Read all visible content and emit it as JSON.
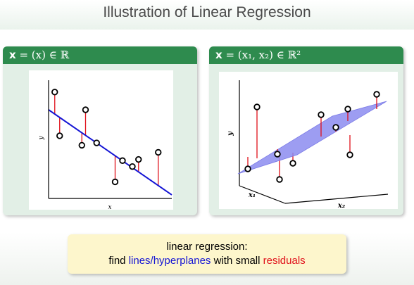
{
  "title": "Illustration of Linear Regression",
  "left_panel": {
    "heading_bold": "x",
    "heading_rest": " = (x) ∈ ℝ",
    "x_axis_label": "x",
    "y_axis_label": "y"
  },
  "right_panel": {
    "heading_bold": "x",
    "heading_rest": " = (x₁, x₂) ∈ ℝ²",
    "x1_label": "x₁",
    "x2_label": "x₂",
    "y_axis_label": "y"
  },
  "note": {
    "line1": "linear regression:",
    "line2_pre": "find ",
    "line2_blue": "lines/hyperplanes",
    "line2_mid": " with small ",
    "line2_red": "residuals"
  },
  "colors": {
    "line": "#1414d4",
    "residual": "#e0101a",
    "plane": "#8888ee",
    "block_header": "#2e8b4e"
  },
  "chart_data": [
    {
      "type": "scatter",
      "title": "",
      "xlabel": "x",
      "ylabel": "y",
      "xlim": [
        0,
        10
      ],
      "ylim": [
        0,
        10
      ],
      "grid": false,
      "points": [
        {
          "x": 0.5,
          "y": 9.0
        },
        {
          "x": 0.9,
          "y": 5.3
        },
        {
          "x": 2.7,
          "y": 4.5
        },
        {
          "x": 3.0,
          "y": 7.5
        },
        {
          "x": 3.9,
          "y": 4.7
        },
        {
          "x": 5.4,
          "y": 1.4
        },
        {
          "x": 6.0,
          "y": 3.2
        },
        {
          "x": 6.8,
          "y": 2.7
        },
        {
          "x": 7.3,
          "y": 3.3
        },
        {
          "x": 8.9,
          "y": 3.9
        }
      ],
      "fit_line": {
        "intercept": 7.5,
        "slope": -0.72
      }
    },
    {
      "type": "scatter",
      "title": "",
      "xlabel": "x₁",
      "ylabel": "y",
      "zlabel": "x₂",
      "grid": false,
      "note": "3D scatter with fitted regression plane and vertical residuals"
    }
  ]
}
